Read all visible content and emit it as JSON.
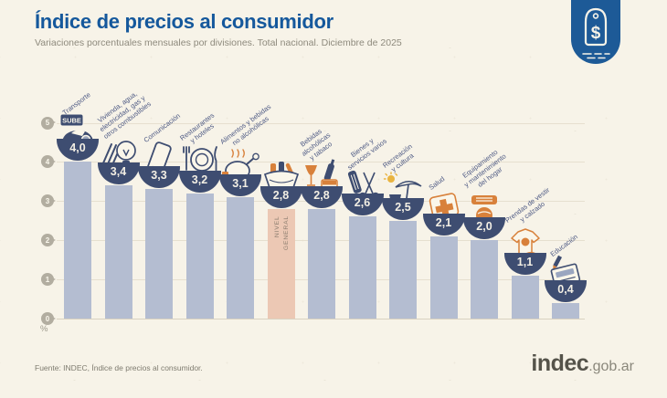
{
  "header": {
    "title": "Índice de precios al consumidor",
    "subtitle": "Variaciones porcentuales mensuales por divisiones. Total nacional. Diciembre de 2025"
  },
  "badge": {
    "icon": "price-tag-icon",
    "symbol": "$"
  },
  "chart_data": {
    "type": "bar",
    "title": "Índice de precios al consumidor",
    "subtitle": "Variaciones porcentuales mensuales por divisiones. Total nacional. Diciembre de 2025",
    "ylabel": "%",
    "ylim": [
      0,
      5
    ],
    "yticks": [
      0,
      1,
      2,
      3,
      4,
      5
    ],
    "grid": true,
    "legend_position": "none",
    "categories": [
      "Transporte",
      "Vivienda, agua, electricidad, gas y otros combustibles",
      "Comunicación",
      "Restaurantes y hoteles",
      "Alimentos y bebidas no alcohólicas",
      "Nivel general",
      "Bebidas alcohólicas y tabaco",
      "Bienes y servicios varios",
      "Recreación y cultura",
      "Salud",
      "Equipamiento y mantenimiento del hogar",
      "Prendas de vestir y calzado",
      "Educación"
    ],
    "values": [
      4.0,
      3.4,
      3.3,
      3.2,
      3.1,
      2.8,
      2.8,
      2.6,
      2.5,
      2.1,
      2.0,
      1.1,
      0.4
    ],
    "value_labels": [
      "4,0",
      "3,4",
      "3,3",
      "3,2",
      "3,1",
      "2,8",
      "2,8",
      "2,6",
      "2,5",
      "2,1",
      "2,0",
      "1,1",
      "0,4"
    ],
    "label_lines": [
      [
        "Transporte"
      ],
      [
        "Vivienda, agua,",
        "electricidad, gas y",
        "otros combustibles"
      ],
      [
        "Comunicación"
      ],
      [
        "Restaurantes",
        "y hoteles"
      ],
      [
        "Alimentos y bebidas",
        "no alcohólicas"
      ],
      [],
      [
        "Bebidas",
        "alcohólicas",
        "y tabaco"
      ],
      [
        "Bienes y",
        "servicios varios"
      ],
      [
        "Recreación",
        "y cultura"
      ],
      [
        "Salud"
      ],
      [
        "Equipamiento",
        "y mantenimiento",
        "del hogar"
      ],
      [
        "Prendas de vestir",
        "y calzado"
      ],
      [
        "Educación"
      ]
    ],
    "icons": [
      "transport-sube-card-icon",
      "housing-utilities-icon",
      "phone-icon",
      "restaurant-plate-icon",
      "food-roast-chicken-icon",
      "shopping-basket-icon",
      "alcohol-tobacco-icon",
      "goods-services-scissors-icon",
      "recreation-umbrella-icon",
      "health-first-aid-icon",
      "home-equipment-icon",
      "clothing-tshirt-icon",
      "education-book-icon"
    ],
    "highlight_index": 5,
    "highlight_in_bar_lines": [
      "NIVEL",
      "GENERAL"
    ],
    "transport_card_text": "SUBE",
    "colors": {
      "background": "#f7f3e8",
      "title_blue": "#15589c",
      "bar": "#b4bdd1",
      "highlight_bar": "#ecc8b4",
      "bowl_navy": "#3e4d71",
      "accent_orange": "#d8813b",
      "badge_blue": "#1d5a97",
      "label_blue": "#4e5a84"
    }
  },
  "footer": {
    "source": "Fuente: INDEC, Índice de precios al consumidor.",
    "logo_main": "indec",
    "logo_suffix": ".gob.ar"
  }
}
